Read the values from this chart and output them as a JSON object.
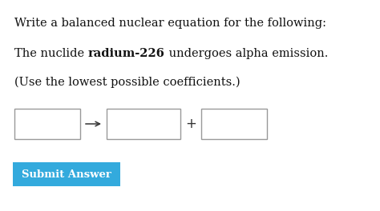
{
  "bg_color": "#ffffff",
  "line1": "Write a balanced nuclear equation for the following:",
  "line2_normal1": "The nuclide ",
  "line2_bold": "radium-226",
  "line2_normal2": " undergoes alpha emission.",
  "line3": "(Use the lowest possible coefficients.)",
  "button_text": "Submit Answer",
  "button_bg": "#33aadd",
  "button_text_color": "#ffffff",
  "box_edge_color": "#999999",
  "arrow_color": "#333333",
  "plus_color": "#333333",
  "text_color": "#111111",
  "font_size_main": 10.5,
  "font_size_button": 9.5,
  "figw": 4.74,
  "figh": 2.64,
  "dpi": 100
}
